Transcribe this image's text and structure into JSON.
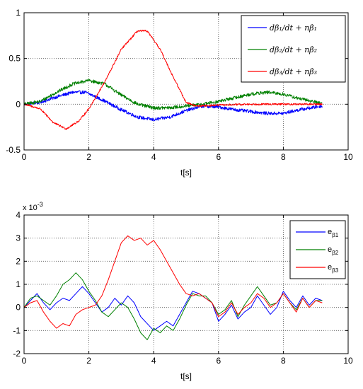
{
  "chart_data": [
    {
      "type": "line",
      "title": "",
      "xlabel": "t[s]",
      "ylabel": "",
      "xlim": [
        0,
        10
      ],
      "ylim": [
        -0.5,
        1
      ],
      "xticks": [
        0,
        2,
        4,
        6,
        8,
        10
      ],
      "yticks": [
        -0.5,
        0,
        0.5,
        1
      ],
      "xtick_labels": [
        "0",
        "2",
        "4",
        "6",
        "8",
        "10"
      ],
      "ytick_labels": [
        "-0.5",
        "0",
        "0.5",
        "1"
      ],
      "grid": true,
      "legend_position": "top-right",
      "noise_amplitude": [
        0.018,
        0.018,
        0.01
      ],
      "series": [
        {
          "name": "dβ₁/dt + nβ̇₁",
          "color": "#0000ff",
          "x": [
            0,
            0.5,
            1.0,
            1.5,
            1.9,
            2.4,
            3.0,
            3.5,
            4.0,
            4.5,
            5.0,
            5.5,
            6.0,
            6.5,
            7.0,
            7.5,
            8.0,
            8.5,
            9.2
          ],
          "y": [
            0.0,
            0.02,
            0.08,
            0.13,
            0.13,
            0.05,
            -0.06,
            -0.14,
            -0.17,
            -0.14,
            -0.07,
            -0.02,
            -0.03,
            -0.06,
            -0.08,
            -0.1,
            -0.1,
            -0.06,
            -0.02
          ]
        },
        {
          "name": "dβ₂/dt + nβ̇₂",
          "color": "#008000",
          "x": [
            0,
            0.5,
            1.0,
            1.5,
            2.0,
            2.5,
            3.0,
            3.5,
            4.0,
            4.5,
            5.0,
            5.5,
            6.0,
            6.5,
            7.0,
            7.5,
            8.0,
            8.5,
            9.2
          ],
          "y": [
            0.0,
            0.03,
            0.13,
            0.22,
            0.26,
            0.22,
            0.1,
            0.0,
            -0.04,
            -0.04,
            -0.02,
            0.0,
            0.03,
            0.07,
            0.11,
            0.13,
            0.11,
            0.06,
            0.01
          ]
        },
        {
          "name": "dβ₃/dt + nβ̇₃",
          "color": "#ff0000",
          "x": [
            0,
            0.5,
            0.9,
            1.3,
            1.7,
            2.0,
            2.5,
            3.0,
            3.5,
            3.8,
            4.2,
            4.6,
            5.0,
            5.3,
            6.0,
            7.0,
            8.0,
            9.2
          ],
          "y": [
            0.0,
            -0.05,
            -0.2,
            -0.27,
            -0.18,
            -0.05,
            0.25,
            0.6,
            0.8,
            0.8,
            0.6,
            0.3,
            0.02,
            -0.02,
            -0.01,
            0.0,
            0.0,
            0.0
          ]
        }
      ]
    },
    {
      "type": "line",
      "title": "",
      "xlabel": "t[s]",
      "ylabel": "",
      "exponent_label": "x 10",
      "exponent_power": "-3",
      "xlim": [
        0,
        10
      ],
      "ylim": [
        -2,
        4
      ],
      "xticks": [
        0,
        2,
        4,
        6,
        8,
        10
      ],
      "yticks": [
        -2,
        -1,
        0,
        1,
        2,
        3,
        4
      ],
      "xtick_labels": [
        "0",
        "2",
        "4",
        "6",
        "8",
        "10"
      ],
      "ytick_labels": [
        "-2",
        "-1",
        "0",
        "1",
        "2",
        "3",
        "4"
      ],
      "grid": true,
      "legend_position": "top-right",
      "series": [
        {
          "name": "eβ1",
          "label_base": "e",
          "label_sub": "β1",
          "color": "#0000ff",
          "x": [
            0,
            0.2,
            0.4,
            0.6,
            0.8,
            1.0,
            1.2,
            1.4,
            1.6,
            1.8,
            2.0,
            2.2,
            2.4,
            2.6,
            2.8,
            3.0,
            3.2,
            3.4,
            3.6,
            3.8,
            4.0,
            4.2,
            4.4,
            4.6,
            4.8,
            5.0,
            5.2,
            5.4,
            5.6,
            5.8,
            6.0,
            6.2,
            6.4,
            6.6,
            6.8,
            7.0,
            7.2,
            7.4,
            7.6,
            7.8,
            8.0,
            8.2,
            8.4,
            8.6,
            8.8,
            9.0,
            9.2
          ],
          "y": [
            0.0,
            0.3,
            0.6,
            0.2,
            -0.1,
            0.2,
            0.4,
            0.3,
            0.6,
            0.9,
            0.6,
            0.2,
            -0.2,
            0.0,
            0.4,
            0.1,
            0.5,
            0.2,
            -0.4,
            -0.7,
            -1.0,
            -0.8,
            -0.6,
            -0.8,
            -0.3,
            0.2,
            0.7,
            0.6,
            0.4,
            0.2,
            -0.6,
            -0.3,
            0.1,
            -0.5,
            -0.2,
            0.0,
            0.5,
            0.1,
            -0.3,
            0.0,
            0.7,
            0.3,
            0.0,
            0.5,
            0.1,
            0.4,
            0.3
          ]
        },
        {
          "name": "eβ2",
          "label_base": "e",
          "label_sub": "β2",
          "color": "#008000",
          "x": [
            0,
            0.2,
            0.4,
            0.6,
            0.8,
            1.0,
            1.2,
            1.4,
            1.6,
            1.8,
            2.0,
            2.2,
            2.4,
            2.6,
            2.8,
            3.0,
            3.2,
            3.4,
            3.6,
            3.8,
            4.0,
            4.2,
            4.4,
            4.6,
            4.8,
            5.0,
            5.2,
            5.4,
            5.6,
            5.8,
            6.0,
            6.2,
            6.4,
            6.6,
            6.8,
            7.0,
            7.2,
            7.4,
            7.6,
            7.8,
            8.0,
            8.2,
            8.4,
            8.6,
            8.8,
            9.0,
            9.2
          ],
          "y": [
            0.0,
            0.4,
            0.5,
            0.3,
            0.1,
            0.5,
            1.0,
            1.2,
            1.5,
            1.2,
            0.7,
            0.3,
            -0.2,
            -0.4,
            -0.1,
            0.2,
            0.0,
            -0.5,
            -1.1,
            -1.4,
            -0.9,
            -1.1,
            -0.8,
            -1.0,
            -0.5,
            0.1,
            0.6,
            0.5,
            0.5,
            0.2,
            -0.3,
            -0.1,
            0.3,
            -0.4,
            0.1,
            0.5,
            0.9,
            0.5,
            0.1,
            0.2,
            0.6,
            0.2,
            -0.1,
            0.4,
            0.0,
            0.3,
            0.3
          ]
        },
        {
          "name": "eβ3",
          "label_base": "e",
          "label_sub": "β3",
          "color": "#ff0000",
          "x": [
            0,
            0.2,
            0.4,
            0.6,
            0.8,
            1.0,
            1.2,
            1.4,
            1.6,
            1.8,
            2.0,
            2.2,
            2.4,
            2.6,
            2.8,
            3.0,
            3.2,
            3.4,
            3.6,
            3.8,
            4.0,
            4.2,
            4.4,
            4.6,
            4.8,
            5.0,
            5.2,
            5.4,
            5.6,
            5.8,
            6.0,
            6.2,
            6.4,
            6.6,
            6.8,
            7.0,
            7.2,
            7.4,
            7.6,
            7.8,
            8.0,
            8.2,
            8.4,
            8.6,
            8.8,
            9.0,
            9.2
          ],
          "y": [
            0.0,
            0.2,
            0.3,
            -0.2,
            -0.6,
            -0.9,
            -0.7,
            -0.8,
            -0.3,
            -0.1,
            0.0,
            0.1,
            0.5,
            1.2,
            2.0,
            2.8,
            3.1,
            2.9,
            3.0,
            2.7,
            2.9,
            2.5,
            2.0,
            1.5,
            1.0,
            0.6,
            0.5,
            0.6,
            0.4,
            0.2,
            -0.4,
            -0.2,
            0.2,
            -0.3,
            0.0,
            0.2,
            0.6,
            0.4,
            0.0,
            0.2,
            0.6,
            0.2,
            -0.2,
            0.4,
            0.0,
            0.3,
            0.2
          ]
        }
      ]
    }
  ]
}
